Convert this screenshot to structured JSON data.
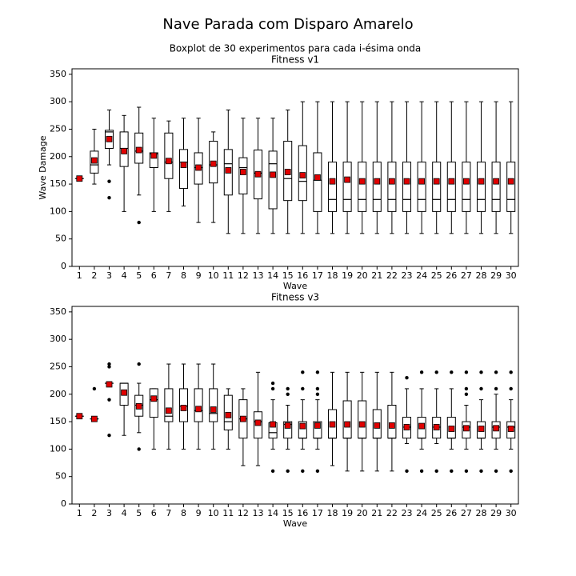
{
  "title": "Nave Parada com Disparo Amarelo",
  "chart_data": [
    {
      "type": "box",
      "subtitle": "Boxplot de 30 experimentos para cada i-ésima onda",
      "title": "Fitness v1",
      "xlabel": "Wave",
      "ylabel": "Wave Damage",
      "categories": [
        1,
        2,
        3,
        4,
        5,
        6,
        7,
        8,
        9,
        10,
        11,
        12,
        13,
        14,
        15,
        16,
        17,
        18,
        19,
        20,
        21,
        22,
        23,
        24,
        25,
        26,
        27,
        28,
        29,
        30
      ],
      "ylim": [
        0,
        360
      ],
      "yticks": [
        0,
        50,
        100,
        150,
        200,
        250,
        300,
        350
      ],
      "whislo": [
        160,
        150,
        185,
        100,
        130,
        100,
        100,
        110,
        80,
        80,
        60,
        60,
        60,
        60,
        60,
        60,
        60,
        60,
        60,
        60,
        60,
        60,
        60,
        60,
        60,
        60,
        60,
        60,
        60,
        60
      ],
      "q1": [
        160,
        170,
        215,
        182,
        188,
        180,
        160,
        142,
        150,
        152,
        130,
        132,
        123,
        105,
        120,
        120,
        100,
        100,
        100,
        100,
        100,
        100,
        100,
        100,
        100,
        100,
        100,
        100,
        100,
        100
      ],
      "med": [
        160,
        185,
        245,
        215,
        210,
        205,
        190,
        190,
        180,
        185,
        187,
        180,
        170,
        187,
        160,
        155,
        157,
        122,
        122,
        122,
        122,
        122,
        122,
        122,
        122,
        122,
        122,
        122,
        122,
        122
      ],
      "q3": [
        160,
        210,
        248,
        245,
        243,
        207,
        243,
        213,
        207,
        228,
        213,
        198,
        212,
        210,
        228,
        220,
        207,
        190,
        190,
        190,
        190,
        190,
        190,
        190,
        190,
        190,
        190,
        190,
        190,
        190
      ],
      "whishi": [
        160,
        250,
        285,
        275,
        290,
        270,
        265,
        270,
        270,
        245,
        285,
        270,
        270,
        270,
        285,
        300,
        300,
        300,
        300,
        300,
        300,
        300,
        300,
        300,
        300,
        300,
        300,
        300,
        300,
        300
      ],
      "mean": [
        160,
        193,
        232,
        210,
        212,
        202,
        192,
        185,
        180,
        187,
        175,
        172,
        168,
        167,
        172,
        166,
        162,
        155,
        158,
        155,
        155,
        155,
        155,
        155,
        155,
        155,
        155,
        155,
        155,
        155
      ],
      "fliers": [
        [],
        [],
        [
          155,
          125
        ],
        [],
        [
          80
        ],
        [],
        [],
        [],
        [],
        [],
        [],
        [],
        [],
        [],
        [],
        [],
        [],
        [],
        [],
        [],
        [],
        [],
        [],
        [],
        [],
        [],
        [],
        [],
        [],
        []
      ]
    },
    {
      "type": "box",
      "title": "Fitness v3",
      "xlabel": "Wave",
      "categories": [
        1,
        2,
        3,
        4,
        5,
        6,
        7,
        8,
        9,
        10,
        11,
        12,
        13,
        14,
        15,
        16,
        17,
        18,
        19,
        20,
        21,
        22,
        23,
        24,
        25,
        26,
        27,
        28,
        29,
        30
      ],
      "ylim": [
        0,
        360
      ],
      "yticks": [
        0,
        50,
        100,
        150,
        200,
        250,
        300,
        350
      ],
      "whislo": [
        160,
        155,
        220,
        125,
        130,
        100,
        100,
        100,
        100,
        100,
        100,
        70,
        70,
        100,
        100,
        100,
        100,
        70,
        60,
        60,
        60,
        60,
        110,
        100,
        110,
        100,
        100,
        100,
        100,
        100
      ],
      "q1": [
        160,
        155,
        220,
        180,
        160,
        158,
        150,
        150,
        150,
        150,
        135,
        120,
        120,
        120,
        120,
        120,
        120,
        120,
        120,
        120,
        120,
        120,
        120,
        120,
        120,
        120,
        120,
        120,
        120,
        120
      ],
      "med": [
        160,
        155,
        220,
        220,
        180,
        190,
        160,
        178,
        170,
        165,
        150,
        155,
        150,
        130,
        145,
        120,
        120,
        120,
        120,
        120,
        120,
        120,
        140,
        120,
        140,
        120,
        140,
        120,
        140,
        140
      ],
      "q3": [
        160,
        155,
        220,
        220,
        198,
        210,
        210,
        210,
        210,
        210,
        198,
        190,
        168,
        148,
        150,
        150,
        150,
        172,
        188,
        188,
        172,
        180,
        158,
        158,
        158,
        158,
        150,
        150,
        150,
        150
      ],
      "whishi": [
        160,
        155,
        220,
        220,
        220,
        210,
        255,
        255,
        255,
        255,
        210,
        210,
        240,
        190,
        180,
        190,
        190,
        240,
        240,
        240,
        240,
        240,
        210,
        210,
        210,
        210,
        180,
        190,
        200,
        190
      ],
      "mean": [
        160,
        155,
        218,
        203,
        178,
        192,
        170,
        175,
        173,
        172,
        162,
        155,
        148,
        145,
        143,
        142,
        143,
        145,
        145,
        145,
        143,
        143,
        140,
        142,
        140,
        137,
        138,
        137,
        138,
        137
      ],
      "fliers": [
        [],
        [
          210
        ],
        [
          255,
          250,
          190,
          125
        ],
        [],
        [
          255,
          100
        ],
        [],
        [],
        [],
        [],
        [],
        [],
        [],
        [],
        [
          220,
          210,
          60
        ],
        [
          210,
          200,
          60
        ],
        [
          240,
          210,
          60
        ],
        [
          240,
          210,
          200,
          60
        ],
        [],
        [],
        [],
        [],
        [],
        [
          230,
          60
        ],
        [
          240,
          60
        ],
        [
          240,
          60
        ],
        [
          240,
          60
        ],
        [
          240,
          210,
          200,
          60
        ],
        [
          240,
          210,
          60
        ],
        [
          240,
          210,
          60
        ],
        [
          240,
          210,
          60
        ]
      ]
    }
  ]
}
